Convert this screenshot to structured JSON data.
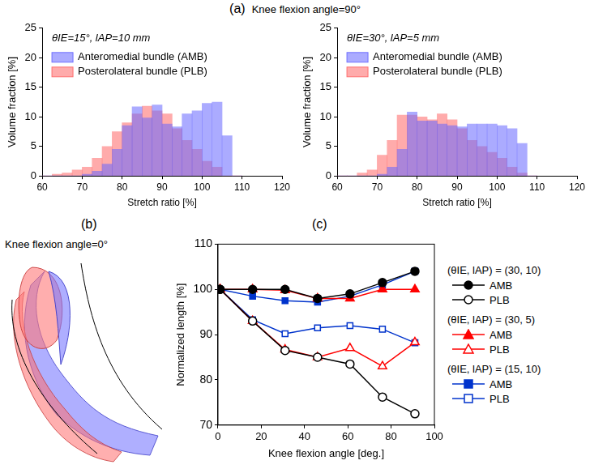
{
  "panels": {
    "a": {
      "label": "(a)",
      "title": "Knee flexion angle=90°"
    },
    "b": {
      "label": "(b)",
      "title": "Knee flexion angle=0°"
    },
    "c": {
      "label": "(c)"
    }
  },
  "chart_data": [
    {
      "type": "histogram",
      "annotation": "θIE=15°, lAP=10 mm",
      "x_label": "Stretch ratio [%]",
      "y_label": "Volume fraction [%]",
      "bins": [
        60,
        62.5,
        65,
        67.5,
        70,
        72.5,
        75,
        77.5,
        80,
        82.5,
        85,
        87.5,
        90,
        92.5,
        95,
        97.5,
        100,
        102.5,
        105,
        107.5,
        110
      ],
      "series": [
        {
          "name": "Anteromedial bundle (AMB)",
          "color": "#6666ff",
          "values": [
            0,
            0,
            0,
            0,
            0.3,
            0.8,
            2,
            4.5,
            8.5,
            11.7,
            9.8,
            12,
            8.8,
            8.3,
            10.5,
            11,
            12.3,
            12.5,
            6.8,
            0
          ]
        },
        {
          "name": "Posterolateral bundle (PLB)",
          "color": "#ff6666",
          "values": [
            0,
            0.3,
            0.5,
            1,
            1.5,
            3,
            5,
            7.5,
            9,
            10.5,
            11.8,
            11,
            10.5,
            8,
            6,
            4.5,
            2.5,
            1.5,
            0,
            0
          ]
        }
      ],
      "xlim": [
        60,
        120
      ],
      "xticks": [
        60,
        70,
        80,
        90,
        100,
        110,
        120
      ],
      "ylim": [
        0,
        25
      ],
      "yticks": [
        0,
        5,
        10,
        15,
        20,
        25
      ],
      "legend": "upper left",
      "grid": false
    },
    {
      "type": "histogram",
      "annotation": "θIE=30°, lAP=5 mm",
      "x_label": "Stretch ratio [%]",
      "y_label": "Volume fraction [%]",
      "bins": [
        60,
        62.5,
        65,
        67.5,
        70,
        72.5,
        75,
        77.5,
        80,
        82.5,
        85,
        87.5,
        90,
        92.5,
        95,
        97.5,
        100,
        102.5,
        105,
        107.5,
        110
      ],
      "series": [
        {
          "name": "Anteromedial bundle (AMB)",
          "color": "#6666ff",
          "values": [
            0,
            0,
            0,
            0,
            0.3,
            1.5,
            4.5,
            10.8,
            9.3,
            9.3,
            8.8,
            8.5,
            8.3,
            8.8,
            8.8,
            8.8,
            8.5,
            8,
            5.5,
            0
          ]
        },
        {
          "name": "Posterolateral bundle (PLB)",
          "color": "#ff6666",
          "values": [
            0,
            0,
            0.5,
            1,
            3.5,
            6,
            10.3,
            10.3,
            10,
            9.5,
            10.5,
            9.5,
            8,
            6,
            5,
            4,
            3,
            1.5,
            0.5,
            0
          ]
        }
      ],
      "xlim": [
        60,
        120
      ],
      "xticks": [
        60,
        70,
        80,
        90,
        100,
        110,
        120
      ],
      "ylim": [
        0,
        25
      ],
      "yticks": [
        0,
        5,
        10,
        15,
        20,
        25
      ],
      "legend": "upper left",
      "grid": false
    },
    {
      "type": "line",
      "x_label": "Knee flexion angle [deg.]",
      "y_label": "Normalized length [%]",
      "x": [
        1,
        16,
        31,
        46,
        61,
        76,
        91
      ],
      "series": [
        {
          "name": "AMB",
          "group": "(θIE, lAP) = (30, 10)",
          "color": "#000000",
          "marker": "circle",
          "line_style": "solid",
          "values": [
            100,
            100,
            100,
            98,
            99,
            101.5,
            104
          ]
        },
        {
          "name": "PLB",
          "group": "(θIE, lAP) = (30, 10)",
          "color": "#000000",
          "marker": "circle-open",
          "line_style": "solid",
          "values": [
            100,
            93,
            86.5,
            85,
            83.5,
            76.2,
            72.5
          ]
        },
        {
          "name": "AMB",
          "group": "(θIE, lAP) = (30, 5)",
          "color": "#ff0000",
          "marker": "triangle",
          "line_style": "solid",
          "values": [
            100,
            100,
            99.8,
            98,
            98,
            100,
            100
          ]
        },
        {
          "name": "PLB",
          "group": "(θIE, lAP) = (30, 5)",
          "color": "#ff0000",
          "marker": "triangle-open",
          "line_style": "solid",
          "values": [
            100,
            93,
            86.7,
            85,
            87,
            83,
            88.3
          ]
        },
        {
          "name": "AMB",
          "group": "(θIE, lAP) = (15, 10)",
          "color": "#0033cc",
          "marker": "square",
          "line_style": "solid",
          "values": [
            100,
            98.5,
            97.5,
            97.2,
            98.5,
            101,
            104
          ]
        },
        {
          "name": "PLB",
          "group": "(θIE, lAP) = (15, 10)",
          "color": "#0033cc",
          "marker": "square-open",
          "line_style": "solid",
          "values": [
            100,
            93.3,
            90.2,
            91.5,
            92,
            91.2,
            88.2
          ]
        }
      ],
      "xlim": [
        0,
        100
      ],
      "xticks": [
        0,
        20,
        40,
        60,
        80,
        100
      ],
      "ylim": [
        70,
        110
      ],
      "yticks": [
        70,
        80,
        90,
        100,
        110
      ],
      "legend": "right",
      "grid": false
    }
  ]
}
